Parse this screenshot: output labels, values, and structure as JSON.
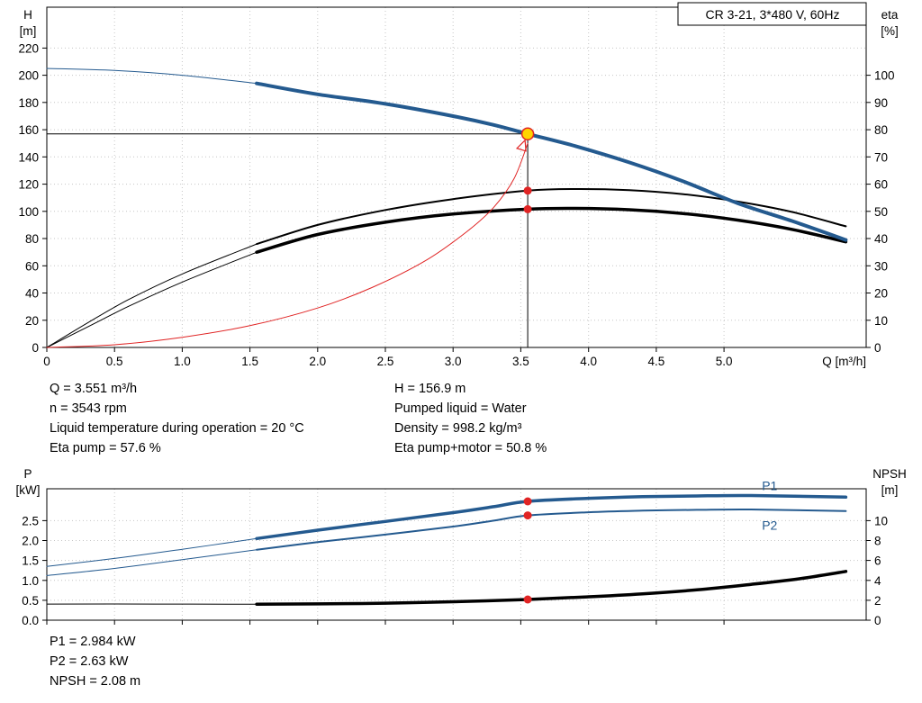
{
  "info_top": {
    "col1": [
      "Q = 3.551 m³/h",
      "n = 3543 rpm",
      "Liquid temperature during operation = 20 °C",
      "Eta pump = 57.6 %"
    ],
    "col2": [
      "H = 156.9 m",
      "Pumped liquid = Water",
      "Density = 998.2 kg/m³",
      "Eta pump+motor = 50.8 %"
    ]
  },
  "info_bottom": [
    "P1 = 2.984 kW",
    "P2 = 2.63 kW",
    "NPSH = 2.08 m"
  ],
  "colors": {
    "curve_blue": "#245a8f",
    "curve_black": "#000000",
    "curve_red": "#e02424",
    "marker_yellow": "#ffd400",
    "grid": "#c6c6c6"
  },
  "chart_data": [
    {
      "type": "line",
      "name": "qh-eta-chart",
      "title": "CR 3-21, 3*480 V, 60Hz",
      "xlabel": "Q [m³/h]",
      "axis_left_label": [
        "H",
        "[m]"
      ],
      "axis_right_label": [
        "eta",
        "[%]"
      ],
      "xlim": [
        0,
        6.05
      ],
      "ylim_left": [
        0,
        250
      ],
      "ylim_right": [
        0,
        125
      ],
      "show_x_labels": true,
      "grid_color": "#c6c6c6",
      "xticks": [
        [
          0,
          "0"
        ],
        [
          0.5,
          "0.5"
        ],
        [
          1,
          "1.0"
        ],
        [
          1.5,
          "1.5"
        ],
        [
          2,
          "2.0"
        ],
        [
          2.5,
          "2.5"
        ],
        [
          3,
          "3.0"
        ],
        [
          3.5,
          "3.5"
        ],
        [
          4,
          "4.0"
        ],
        [
          4.5,
          "4.5"
        ],
        [
          5,
          "5.0"
        ]
      ],
      "yticks_left": [
        [
          0,
          "0"
        ],
        [
          20,
          "20"
        ],
        [
          40,
          "40"
        ],
        [
          60,
          "60"
        ],
        [
          80,
          "80"
        ],
        [
          100,
          "100"
        ],
        [
          120,
          "120"
        ],
        [
          140,
          "140"
        ],
        [
          160,
          "160"
        ],
        [
          180,
          "180"
        ],
        [
          200,
          "200"
        ],
        [
          220,
          "220"
        ]
      ],
      "yticks_right": [
        [
          0,
          "0"
        ],
        [
          10,
          "10"
        ],
        [
          20,
          "20"
        ],
        [
          30,
          "30"
        ],
        [
          40,
          "40"
        ],
        [
          50,
          "50"
        ],
        [
          60,
          "60"
        ],
        [
          70,
          "70"
        ],
        [
          80,
          "80"
        ],
        [
          90,
          "90"
        ],
        [
          100,
          "100"
        ]
      ],
      "series": [
        {
          "name": "crosshair-h",
          "axis": "left",
          "color": "#000000",
          "width": 1,
          "smooth": false,
          "points": [
            [
              0,
              156.9
            ],
            [
              3.551,
              156.9
            ]
          ]
        },
        {
          "name": "crosshair-v",
          "axis": "left",
          "color": "#000000",
          "width": 1,
          "smooth": false,
          "points": [
            [
              3.551,
              0
            ],
            [
              3.551,
              156.9
            ]
          ]
        },
        {
          "name": "eta-pump-thin",
          "axis": "right",
          "color": "#000000",
          "width": 1,
          "points": [
            [
              0,
              0
            ],
            [
              0.3,
              9
            ],
            [
              0.6,
              17.5
            ],
            [
              1.0,
              27
            ],
            [
              1.55,
              38
            ]
          ]
        },
        {
          "name": "eta-pump",
          "axis": "right",
          "color": "#000000",
          "width": 2,
          "points": [
            [
              1.55,
              38
            ],
            [
              2.0,
              45
            ],
            [
              2.5,
              50.5
            ],
            [
              3.0,
              54.5
            ],
            [
              3.551,
              57.6
            ],
            [
              3.9,
              58.2
            ],
            [
              4.3,
              57.8
            ],
            [
              4.7,
              56.3
            ],
            [
              5.1,
              53.6
            ],
            [
              5.5,
              49.8
            ],
            [
              5.9,
              44.5
            ]
          ]
        },
        {
          "name": "eta-pump-motor-thin",
          "axis": "right",
          "color": "#000000",
          "width": 1,
          "points": [
            [
              0,
              0
            ],
            [
              0.3,
              7.5
            ],
            [
              0.6,
              15
            ],
            [
              1.0,
              24
            ],
            [
              1.55,
              35
            ]
          ]
        },
        {
          "name": "eta-pump-motor",
          "axis": "right",
          "color": "#000000",
          "width": 3.5,
          "points": [
            [
              1.55,
              35
            ],
            [
              2.0,
              41.5
            ],
            [
              2.5,
              46
            ],
            [
              3.0,
              49
            ],
            [
              3.551,
              50.8
            ],
            [
              3.9,
              51.1
            ],
            [
              4.3,
              50.6
            ],
            [
              4.7,
              49.2
            ],
            [
              5.1,
              46.8
            ],
            [
              5.5,
              43.4
            ],
            [
              5.9,
              38.8
            ]
          ]
        },
        {
          "name": "system-curve",
          "axis": "left",
          "color": "#e02424",
          "width": 1,
          "points": [
            [
              0,
              0
            ],
            [
              0.5,
              2
            ],
            [
              1.0,
              7.5
            ],
            [
              1.5,
              16
            ],
            [
              2.0,
              29
            ],
            [
              2.4,
              44
            ],
            [
              2.8,
              64
            ],
            [
              3.1,
              85
            ],
            [
              3.3,
              103
            ],
            [
              3.45,
              124
            ],
            [
              3.551,
              150
            ]
          ]
        },
        {
          "name": "qh-thin",
          "axis": "left",
          "color": "#245a8f",
          "width": 1,
          "points": [
            [
              0,
              205
            ],
            [
              0.5,
              203.5
            ],
            [
              1.0,
              200
            ],
            [
              1.55,
              194
            ]
          ]
        },
        {
          "name": "qh",
          "axis": "left",
          "color": "#245a8f",
          "width": 4,
          "points": [
            [
              1.55,
              194
            ],
            [
              2.0,
              186
            ],
            [
              2.5,
              179
            ],
            [
              3.0,
              170
            ],
            [
              3.3,
              163.5
            ],
            [
              3.551,
              156.9
            ],
            [
              3.9,
              148
            ],
            [
              4.3,
              136
            ],
            [
              4.7,
              122
            ],
            [
              5.1,
              106
            ],
            [
              5.5,
              93
            ],
            [
              5.9,
              79
            ]
          ]
        }
      ],
      "markers": [
        {
          "name": "system-curve-arrow",
          "shape": "arrow",
          "x": 3.551,
          "y": 156.9,
          "axis": "left",
          "stroke": "#e02424"
        },
        {
          "name": "eta-pump-point",
          "x": 3.551,
          "y": 57.6,
          "axis": "right",
          "r": 4.5,
          "fill": "#e02424"
        },
        {
          "name": "eta-pump-motor-point",
          "x": 3.551,
          "y": 50.8,
          "axis": "right",
          "r": 4.5,
          "fill": "#e02424"
        },
        {
          "name": "duty-point-marker",
          "x": 3.551,
          "y": 156.9,
          "axis": "left",
          "r": 6.5,
          "fill": "#ffd400",
          "stroke": "#e02424",
          "stroke_width": 1.5,
          "interactable": true
        }
      ],
      "annotations": []
    },
    {
      "type": "line",
      "name": "power-npsh-chart",
      "title": "",
      "xlabel": "",
      "axis_left_label": [
        "P",
        "[kW]"
      ],
      "axis_right_label": [
        "NPSH",
        "[m]"
      ],
      "xlim": [
        0,
        6.05
      ],
      "ylim_left": [
        0,
        3.3
      ],
      "ylim_right": [
        0,
        13.2
      ],
      "show_x_labels": false,
      "grid_color": "#c6c6c6",
      "xticks": [
        [
          0,
          ""
        ],
        [
          0.5,
          ""
        ],
        [
          1,
          ""
        ],
        [
          1.5,
          ""
        ],
        [
          2,
          ""
        ],
        [
          2.5,
          ""
        ],
        [
          3,
          ""
        ],
        [
          3.5,
          ""
        ],
        [
          4,
          ""
        ],
        [
          4.5,
          ""
        ],
        [
          5,
          ""
        ]
      ],
      "yticks_left": [
        [
          0,
          "0.0"
        ],
        [
          0.5,
          "0.5"
        ],
        [
          1,
          "1.0"
        ],
        [
          1.5,
          "1.5"
        ],
        [
          2,
          "2.0"
        ],
        [
          2.5,
          "2.5"
        ]
      ],
      "yticks_right": [
        [
          0,
          "0"
        ],
        [
          2,
          "2"
        ],
        [
          4,
          "4"
        ],
        [
          6,
          "6"
        ],
        [
          8,
          "8"
        ],
        [
          10,
          "10"
        ]
      ],
      "series": [
        {
          "name": "npsh-thin",
          "axis": "right",
          "color": "#000000",
          "width": 1,
          "points": [
            [
              0,
              1.62
            ],
            [
              0.8,
              1.62
            ],
            [
              1.55,
              1.6
            ]
          ]
        },
        {
          "name": "npsh",
          "axis": "right",
          "color": "#000000",
          "width": 3.5,
          "points": [
            [
              1.55,
              1.6
            ],
            [
              2.0,
              1.64
            ],
            [
              2.5,
              1.71
            ],
            [
              3.0,
              1.85
            ],
            [
              3.551,
              2.08
            ],
            [
              4.0,
              2.35
            ],
            [
              4.4,
              2.65
            ],
            [
              4.8,
              3.05
            ],
            [
              5.2,
              3.6
            ],
            [
              5.55,
              4.15
            ],
            [
              5.9,
              4.9
            ]
          ]
        },
        {
          "name": "p2-thin",
          "axis": "left",
          "color": "#245a8f",
          "width": 1,
          "points": [
            [
              0,
              1.12
            ],
            [
              0.5,
              1.3
            ],
            [
              1.0,
              1.52
            ],
            [
              1.55,
              1.77
            ]
          ]
        },
        {
          "name": "p2",
          "axis": "left",
          "color": "#245a8f",
          "width": 2,
          "points": [
            [
              1.55,
              1.77
            ],
            [
              2.0,
              1.96
            ],
            [
              2.5,
              2.15
            ],
            [
              3.0,
              2.35
            ],
            [
              3.3,
              2.5
            ],
            [
              3.551,
              2.63
            ],
            [
              4.0,
              2.71
            ],
            [
              4.4,
              2.75
            ],
            [
              4.8,
              2.77
            ],
            [
              5.2,
              2.78
            ],
            [
              5.9,
              2.74
            ]
          ]
        },
        {
          "name": "p1-thin",
          "axis": "left",
          "color": "#245a8f",
          "width": 1,
          "points": [
            [
              0,
              1.35
            ],
            [
              0.5,
              1.55
            ],
            [
              1.0,
              1.78
            ],
            [
              1.55,
              2.05
            ]
          ]
        },
        {
          "name": "p1",
          "axis": "left",
          "color": "#245a8f",
          "width": 3.5,
          "points": [
            [
              1.55,
              2.05
            ],
            [
              2.0,
              2.26
            ],
            [
              2.5,
              2.48
            ],
            [
              3.0,
              2.7
            ],
            [
              3.3,
              2.85
            ],
            [
              3.551,
              2.984
            ],
            [
              4.0,
              3.06
            ],
            [
              4.4,
              3.1
            ],
            [
              4.8,
              3.12
            ],
            [
              5.2,
              3.13
            ],
            [
              5.9,
              3.09
            ]
          ]
        }
      ],
      "markers": [
        {
          "name": "p1-point",
          "x": 3.551,
          "y": 2.984,
          "axis": "left",
          "r": 4.5,
          "fill": "#e02424"
        },
        {
          "name": "p2-point",
          "x": 3.551,
          "y": 2.63,
          "axis": "left",
          "r": 4.5,
          "fill": "#e02424"
        },
        {
          "name": "npsh-point",
          "x": 3.551,
          "y": 2.08,
          "axis": "right",
          "r": 4.5,
          "fill": "#e02424"
        }
      ],
      "annotations": [
        {
          "text": "P1",
          "x": 5.28,
          "y": 3.27,
          "axis": "left",
          "color": "#245a8f"
        },
        {
          "text": "P2",
          "x": 5.28,
          "y": 2.27,
          "axis": "left",
          "color": "#245a8f"
        }
      ]
    }
  ]
}
